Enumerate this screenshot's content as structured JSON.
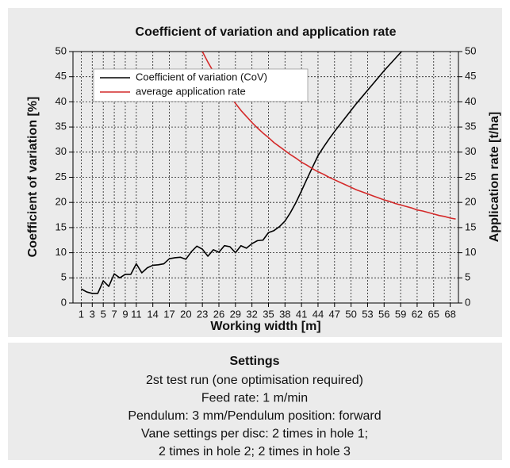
{
  "chart_data": {
    "type": "line",
    "title": "Coefficient of variation and application rate",
    "xlabel": "Working width [m]",
    "ylabel": "Coefficient of variation [%]",
    "y2label": "Application rate [t/ha]",
    "x": [
      1,
      2,
      3,
      4,
      5,
      6,
      7,
      8,
      9,
      10,
      11,
      12,
      13,
      14,
      15,
      16,
      17,
      18,
      19,
      20,
      21,
      22,
      23,
      24,
      25,
      26,
      27,
      28,
      29,
      30,
      31,
      32,
      33,
      34,
      35,
      36,
      37,
      38,
      39,
      40,
      41,
      42,
      43,
      44,
      45,
      46,
      47,
      48,
      49,
      50,
      51,
      52,
      53,
      54,
      55,
      56,
      57,
      58,
      59,
      60,
      61,
      62,
      63,
      64,
      65,
      66,
      67,
      68,
      69
    ],
    "series": [
      {
        "name": "Coefficient of variation (CoV)",
        "color": "#000000",
        "axis": "y",
        "values": [
          2.8,
          2.2,
          1.9,
          1.9,
          4.4,
          3.3,
          5.8,
          5.0,
          5.7,
          5.7,
          7.8,
          6.0,
          7.0,
          7.5,
          7.6,
          7.8,
          8.8,
          9.0,
          9.1,
          8.7,
          10.2,
          11.3,
          10.7,
          9.3,
          10.6,
          10.1,
          11.4,
          11.2,
          10.0,
          11.4,
          10.9,
          11.8,
          12.4,
          12.5,
          14.0,
          14.4,
          15.2,
          16.3,
          18.0,
          20.0,
          22.3,
          24.7,
          27.0,
          29.3,
          31.0,
          32.6,
          34.1,
          35.5,
          36.9,
          38.3,
          39.7,
          41.0,
          42.3,
          43.6,
          44.9,
          46.2,
          47.4,
          48.6,
          49.8,
          51.0,
          null,
          null,
          null,
          null,
          null,
          null,
          null,
          null,
          null
        ]
      },
      {
        "name": "average application rate",
        "color": "#d42a2a",
        "axis": "y2",
        "values": [
          null,
          null,
          null,
          null,
          null,
          null,
          null,
          null,
          null,
          null,
          null,
          null,
          null,
          null,
          null,
          null,
          null,
          null,
          null,
          null,
          null,
          null,
          50.0,
          47.9,
          46.0,
          44.2,
          42.6,
          41.1,
          39.7,
          38.3,
          37.1,
          35.9,
          34.8,
          33.8,
          32.9,
          31.9,
          31.1,
          30.3,
          29.5,
          28.8,
          28.0,
          27.4,
          26.7,
          26.1,
          25.6,
          25.0,
          24.5,
          24.0,
          23.5,
          23.0,
          22.5,
          22.1,
          21.7,
          21.3,
          20.9,
          20.5,
          20.2,
          19.8,
          19.5,
          19.2,
          18.9,
          18.5,
          18.3,
          18.0,
          17.7,
          17.4,
          17.2,
          16.9,
          16.7
        ]
      }
    ],
    "xlim": [
      -0.5,
      69.5
    ],
    "xticks": [
      1,
      3,
      5,
      7,
      9,
      11,
      14,
      17,
      20,
      23,
      26,
      29,
      32,
      35,
      38,
      41,
      44,
      47,
      50,
      53,
      56,
      59,
      62,
      65,
      68
    ],
    "ylim": [
      0,
      50
    ],
    "yticks": [
      0,
      5,
      10,
      15,
      20,
      25,
      30,
      35,
      40,
      45,
      50
    ],
    "y2lim": [
      0,
      50
    ],
    "y2ticks": [
      0,
      5,
      10,
      15,
      20,
      25,
      30,
      35,
      40,
      45,
      50
    ],
    "grid": true,
    "legend": "upper left"
  },
  "settings": {
    "title": "Settings",
    "lines": [
      "2st test run (one optimisation required)",
      "Feed rate: 1 m/min",
      "Pendulum: 3 mm/Pendulum position: forward",
      "Vane settings per disc: 2 times in hole 1;",
      "2 times in hole 2; 2 times in hole 3"
    ]
  }
}
